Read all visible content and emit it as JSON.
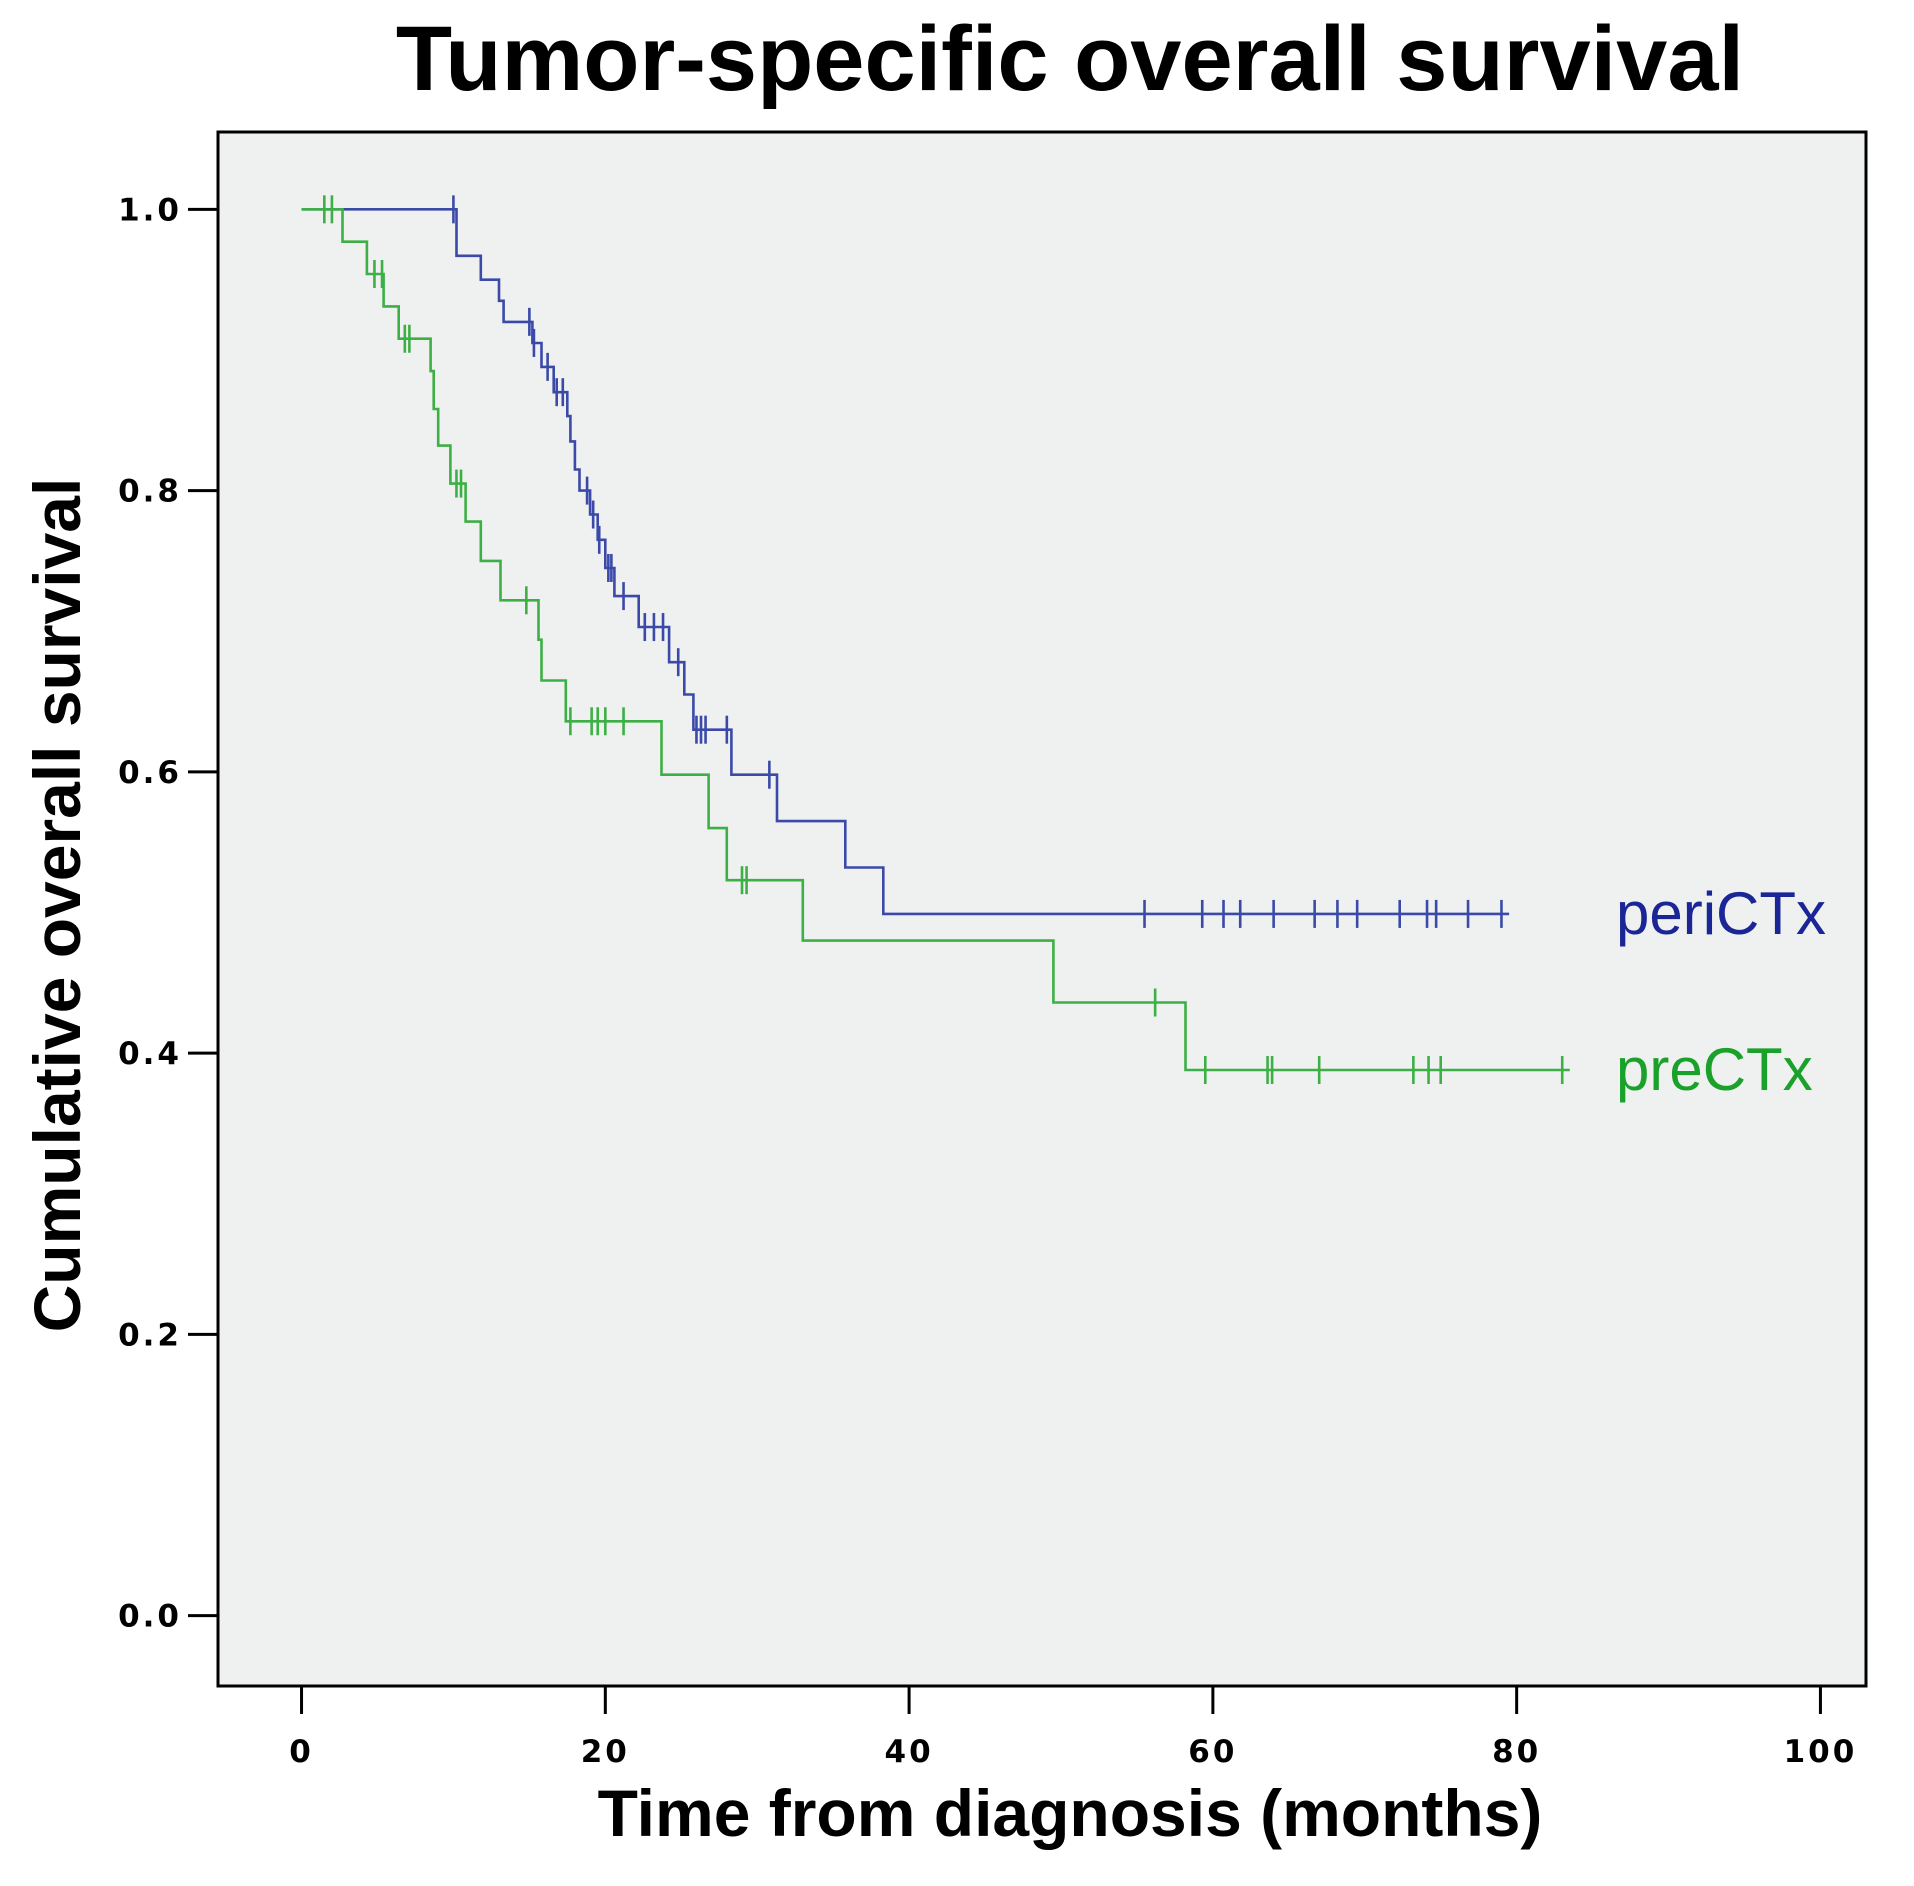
{
  "chart_data": {
    "type": "line",
    "subtype": "kaplan-meier-step",
    "title": "Tumor-specific overall survival",
    "xlabel": "Time from diagnosis (months)",
    "ylabel": "Cumulative overall survival",
    "xlim": [
      -5.5,
      103
    ],
    "ylim": [
      -0.05,
      1.055
    ],
    "x_ticks": [
      0,
      20,
      40,
      60,
      80,
      100
    ],
    "x_tick_labels": [
      "0",
      "20",
      "40",
      "60",
      "80",
      "100"
    ],
    "y_ticks": [
      0.0,
      0.2,
      0.4,
      0.6,
      0.8,
      1.0
    ],
    "y_tick_labels": [
      "0.0",
      "0.2",
      "0.4",
      "0.6",
      "0.8",
      "1.0"
    ],
    "grid": false,
    "legend_placement": "right, labels beside curve ends",
    "plot_background": "#eff0f0",
    "series": [
      {
        "name": "periCTx",
        "color": "#3b4aa8",
        "label_color": "#1a2596",
        "steps": [
          {
            "x": 0,
            "y": 1.0
          },
          {
            "x": 10.2,
            "y": 0.967
          },
          {
            "x": 11.8,
            "y": 0.95
          },
          {
            "x": 13.0,
            "y": 0.935
          },
          {
            "x": 13.3,
            "y": 0.92
          },
          {
            "x": 15.2,
            "y": 0.905
          },
          {
            "x": 15.8,
            "y": 0.888
          },
          {
            "x": 16.6,
            "y": 0.87
          },
          {
            "x": 17.5,
            "y": 0.853
          },
          {
            "x": 17.7,
            "y": 0.835
          },
          {
            "x": 18.0,
            "y": 0.815
          },
          {
            "x": 18.3,
            "y": 0.8
          },
          {
            "x": 19.0,
            "y": 0.783
          },
          {
            "x": 19.5,
            "y": 0.765
          },
          {
            "x": 20.0,
            "y": 0.745
          },
          {
            "x": 20.6,
            "y": 0.725
          },
          {
            "x": 22.2,
            "y": 0.703
          },
          {
            "x": 24.2,
            "y": 0.678
          },
          {
            "x": 25.2,
            "y": 0.655
          },
          {
            "x": 25.8,
            "y": 0.63
          },
          {
            "x": 28.3,
            "y": 0.598
          },
          {
            "x": 31.3,
            "y": 0.565
          },
          {
            "x": 35.8,
            "y": 0.532
          },
          {
            "x": 38.3,
            "y": 0.499
          }
        ],
        "end_x": 79.5,
        "censored": [
          10.0,
          15.0,
          15.3,
          16.2,
          16.8,
          17.2,
          18.8,
          19.2,
          19.6,
          20.2,
          20.4,
          21.2,
          22.6,
          23.2,
          23.8,
          24.8,
          26.0,
          26.3,
          26.6,
          28.0,
          30.8,
          55.5,
          59.3,
          60.7,
          61.8,
          64.0,
          66.7,
          68.2,
          69.5,
          72.3,
          74.1,
          74.7,
          76.8,
          79.0
        ]
      },
      {
        "name": "preCTx",
        "color": "#3cb045",
        "label_color": "#1aa12a",
        "steps": [
          {
            "x": 0,
            "y": 1.0
          },
          {
            "x": 2.7,
            "y": 0.977
          },
          {
            "x": 4.3,
            "y": 0.954
          },
          {
            "x": 5.4,
            "y": 0.931
          },
          {
            "x": 6.4,
            "y": 0.908
          },
          {
            "x": 8.5,
            "y": 0.885
          },
          {
            "x": 8.7,
            "y": 0.858
          },
          {
            "x": 9.0,
            "y": 0.832
          },
          {
            "x": 9.8,
            "y": 0.805
          },
          {
            "x": 10.8,
            "y": 0.778
          },
          {
            "x": 11.8,
            "y": 0.75
          },
          {
            "x": 13.1,
            "y": 0.722
          },
          {
            "x": 15.6,
            "y": 0.694
          },
          {
            "x": 15.8,
            "y": 0.665
          },
          {
            "x": 17.4,
            "y": 0.636
          },
          {
            "x": 23.7,
            "y": 0.598
          },
          {
            "x": 26.8,
            "y": 0.56
          },
          {
            "x": 28.0,
            "y": 0.523
          },
          {
            "x": 33.0,
            "y": 0.48
          },
          {
            "x": 49.5,
            "y": 0.436
          },
          {
            "x": 58.2,
            "y": 0.388
          }
        ],
        "end_x": 83.5,
        "censored": [
          1.5,
          2.0,
          4.8,
          5.3,
          6.8,
          7.1,
          10.2,
          10.5,
          14.8,
          17.7,
          19.1,
          19.5,
          20.0,
          21.2,
          29.0,
          29.3,
          56.2,
          59.5,
          63.6,
          63.9,
          67.0,
          73.2,
          74.2,
          75.0,
          83.0
        ]
      }
    ]
  }
}
